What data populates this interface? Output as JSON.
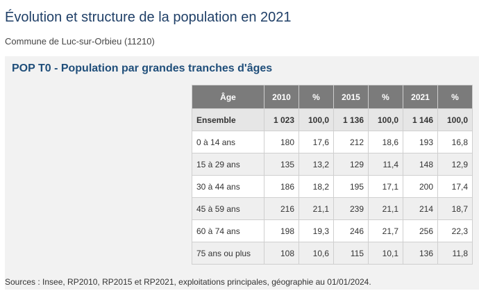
{
  "header": {
    "title": "Évolution et structure de la population en 2021",
    "subtitle": "Commune de Luc-sur-Orbieu (11210)"
  },
  "table": {
    "title": "POP T0 - Population par grandes tranches d'âges",
    "columns": [
      "Âge",
      "2010",
      "%",
      "2015",
      "%",
      "2021",
      "%"
    ],
    "rows": [
      [
        "Ensemble",
        "1 023",
        "100,0",
        "1 136",
        "100,0",
        "1 146",
        "100,0"
      ],
      [
        "0 à 14 ans",
        "180",
        "17,6",
        "212",
        "18,6",
        "193",
        "16,8"
      ],
      [
        "15 à 29 ans",
        "135",
        "13,2",
        "129",
        "11,4",
        "148",
        "12,9"
      ],
      [
        "30 à 44 ans",
        "186",
        "18,2",
        "195",
        "17,1",
        "200",
        "17,4"
      ],
      [
        "45 à 59 ans",
        "216",
        "21,1",
        "239",
        "21,1",
        "214",
        "18,7"
      ],
      [
        "60 à 74 ans",
        "198",
        "19,3",
        "246",
        "21,7",
        "256",
        "22,3"
      ],
      [
        "75 ans ou plus",
        "108",
        "10,6",
        "115",
        "10,1",
        "136",
        "11,8"
      ]
    ]
  },
  "footer": {
    "sources": "Sources : Insee, RP2010, RP2015 et RP2021, exploitations principales, géographie au 01/01/2024."
  }
}
